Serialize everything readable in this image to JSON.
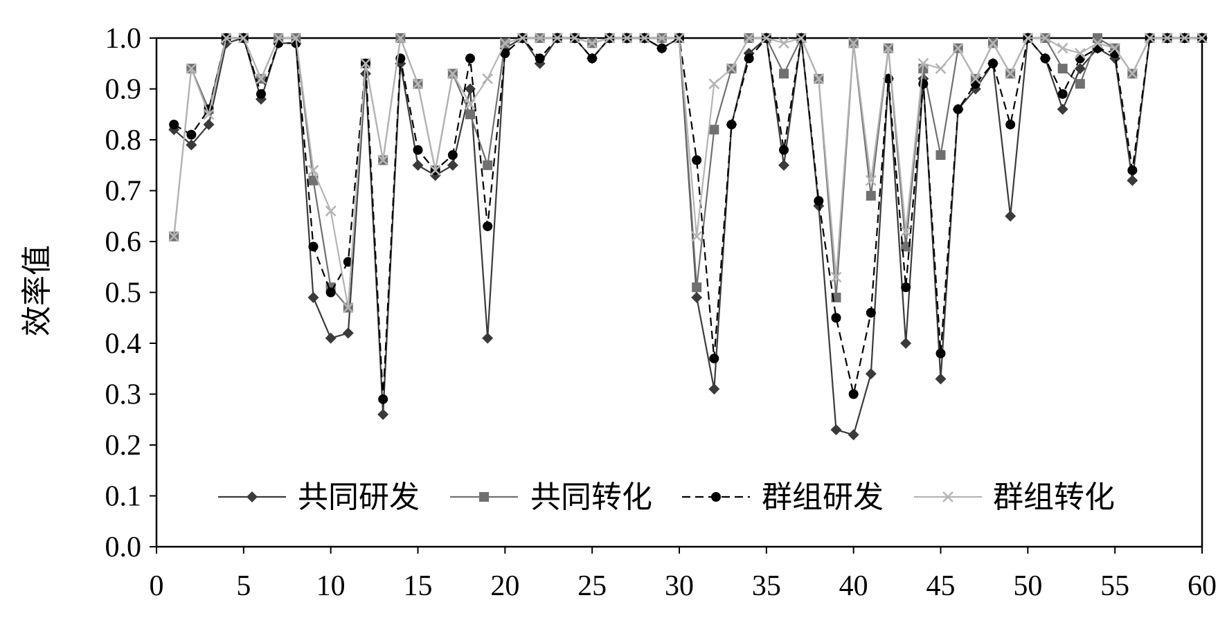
{
  "chart_data": {
    "type": "line",
    "ylabel": "效率值",
    "xlabel": "",
    "xlim": [
      0,
      60
    ],
    "ylim": [
      0,
      1.0
    ],
    "x_ticks": [
      "0",
      "5",
      "10",
      "15",
      "20",
      "25",
      "30",
      "35",
      "40",
      "45",
      "50",
      "55",
      "60"
    ],
    "y_ticks": [
      "0.0",
      "0.1",
      "0.2",
      "0.3",
      "0.4",
      "0.5",
      "0.6",
      "0.7",
      "0.8",
      "0.9",
      "1.0"
    ],
    "grid": false,
    "legend_position": "bottom-inside",
    "x": [
      1,
      2,
      3,
      4,
      5,
      6,
      7,
      8,
      9,
      10,
      11,
      12,
      13,
      14,
      15,
      16,
      17,
      18,
      19,
      20,
      21,
      22,
      23,
      24,
      25,
      26,
      27,
      28,
      29,
      30,
      31,
      32,
      33,
      34,
      35,
      36,
      37,
      38,
      39,
      40,
      41,
      42,
      43,
      44,
      45,
      46,
      47,
      48,
      49,
      50,
      51,
      52,
      53,
      54,
      55,
      56,
      57,
      58,
      59,
      60
    ],
    "series": [
      {
        "name": "共同研发",
        "marker": "diamond",
        "line": "solid",
        "color": "#3a3a3a",
        "values": [
          0.82,
          0.79,
          0.83,
          0.99,
          1.0,
          0.88,
          0.99,
          0.99,
          0.49,
          0.41,
          0.42,
          0.93,
          0.26,
          0.95,
          0.75,
          0.73,
          0.75,
          0.9,
          0.41,
          0.98,
          1.0,
          0.95,
          1.0,
          1.0,
          0.96,
          1.0,
          1.0,
          1.0,
          0.98,
          1.0,
          0.49,
          0.31,
          0.83,
          0.97,
          1.0,
          0.75,
          1.0,
          0.67,
          0.23,
          0.22,
          0.34,
          0.92,
          0.4,
          0.92,
          0.33,
          0.86,
          0.9,
          0.95,
          0.65,
          1.0,
          0.96,
          0.86,
          0.94,
          0.98,
          0.96,
          0.72,
          1.0,
          1.0,
          1.0,
          1.0
        ]
      },
      {
        "name": "共同转化",
        "marker": "square",
        "line": "solid",
        "color": "#707070",
        "values": [
          0.61,
          0.94,
          0.86,
          1.0,
          1.0,
          0.92,
          1.0,
          1.0,
          0.72,
          0.51,
          0.47,
          0.95,
          0.76,
          1.0,
          0.91,
          0.74,
          0.93,
          0.85,
          0.75,
          0.99,
          1.0,
          1.0,
          1.0,
          1.0,
          0.99,
          1.0,
          1.0,
          1.0,
          1.0,
          1.0,
          0.51,
          0.82,
          0.94,
          1.0,
          1.0,
          0.93,
          1.0,
          0.92,
          0.49,
          0.99,
          0.69,
          0.98,
          0.59,
          0.94,
          0.77,
          0.98,
          0.92,
          0.99,
          0.93,
          1.0,
          1.0,
          0.94,
          0.91,
          1.0,
          0.98,
          0.93,
          1.0,
          1.0,
          1.0,
          1.0
        ]
      },
      {
        "name": "群组研发",
        "marker": "circle",
        "line": "dashed",
        "color": "#000000",
        "values": [
          0.83,
          0.81,
          0.86,
          1.0,
          1.0,
          0.89,
          0.99,
          0.99,
          0.59,
          0.5,
          0.56,
          0.95,
          0.29,
          0.96,
          0.78,
          0.74,
          0.77,
          0.96,
          0.63,
          0.97,
          1.0,
          0.96,
          1.0,
          1.0,
          0.96,
          1.0,
          1.0,
          1.0,
          0.98,
          1.0,
          0.76,
          0.37,
          0.83,
          0.96,
          1.0,
          0.78,
          1.0,
          0.68,
          0.45,
          0.3,
          0.46,
          0.92,
          0.51,
          0.91,
          0.38,
          0.86,
          0.91,
          0.95,
          0.83,
          1.0,
          0.96,
          0.89,
          0.96,
          0.98,
          0.97,
          0.74,
          1.0,
          1.0,
          1.0,
          1.0
        ]
      },
      {
        "name": "群组转化",
        "marker": "x",
        "line": "solid",
        "color": "#b4b4b4",
        "values": [
          0.61,
          0.94,
          0.85,
          1.0,
          1.0,
          0.92,
          1.0,
          1.0,
          0.74,
          0.66,
          0.47,
          0.95,
          0.76,
          1.0,
          0.91,
          0.74,
          0.93,
          0.87,
          0.92,
          0.99,
          1.0,
          1.0,
          1.0,
          1.0,
          0.99,
          1.0,
          1.0,
          1.0,
          1.0,
          1.0,
          0.61,
          0.91,
          0.94,
          1.0,
          1.0,
          0.99,
          1.0,
          0.92,
          0.53,
          0.99,
          0.72,
          0.98,
          0.62,
          0.95,
          0.94,
          0.98,
          0.92,
          0.99,
          0.93,
          1.0,
          1.0,
          0.98,
          0.97,
          0.99,
          0.98,
          0.93,
          1.0,
          1.0,
          1.0,
          1.0
        ]
      }
    ]
  }
}
